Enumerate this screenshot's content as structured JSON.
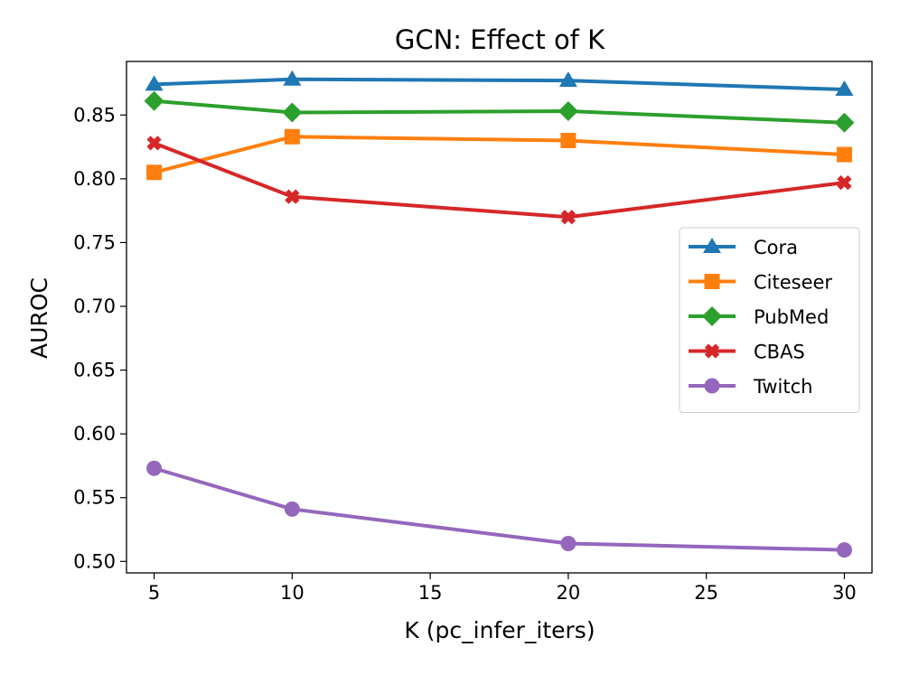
{
  "chart_data": {
    "type": "line",
    "title": "GCN: Effect of K",
    "xlabel": "K (pc_infer_iters)",
    "ylabel": "AUROC",
    "xlim": [
      4,
      31
    ],
    "ylim": [
      0.491,
      0.892
    ],
    "xticks": [
      5,
      10,
      15,
      20,
      25,
      30
    ],
    "xtick_labels": [
      "5",
      "10",
      "15",
      "20",
      "25",
      "30"
    ],
    "yticks": [
      0.5,
      0.55,
      0.6,
      0.65,
      0.7,
      0.75,
      0.8,
      0.85
    ],
    "ytick_labels": [
      "0.50",
      "0.55",
      "0.60",
      "0.65",
      "0.70",
      "0.75",
      "0.80",
      "0.85"
    ],
    "legend_position": "center-right",
    "grid": false,
    "x": [
      5,
      10,
      20,
      30
    ],
    "series": [
      {
        "name": "Cora",
        "values": [
          0.874,
          0.878,
          0.877,
          0.87
        ],
        "color": "#1f77b4",
        "marker": "triangle"
      },
      {
        "name": "Citeseer",
        "values": [
          0.805,
          0.833,
          0.83,
          0.819
        ],
        "color": "#ff7f0e",
        "marker": "square"
      },
      {
        "name": "PubMed",
        "values": [
          0.861,
          0.852,
          0.853,
          0.844
        ],
        "color": "#2ca02c",
        "marker": "diamond"
      },
      {
        "name": "CBAS",
        "values": [
          0.828,
          0.786,
          0.77,
          0.797
        ],
        "color": "#d62728",
        "marker": "x"
      },
      {
        "name": "Twitch",
        "values": [
          0.573,
          0.541,
          0.514,
          0.509
        ],
        "color": "#9467bd",
        "marker": "circle"
      }
    ]
  }
}
